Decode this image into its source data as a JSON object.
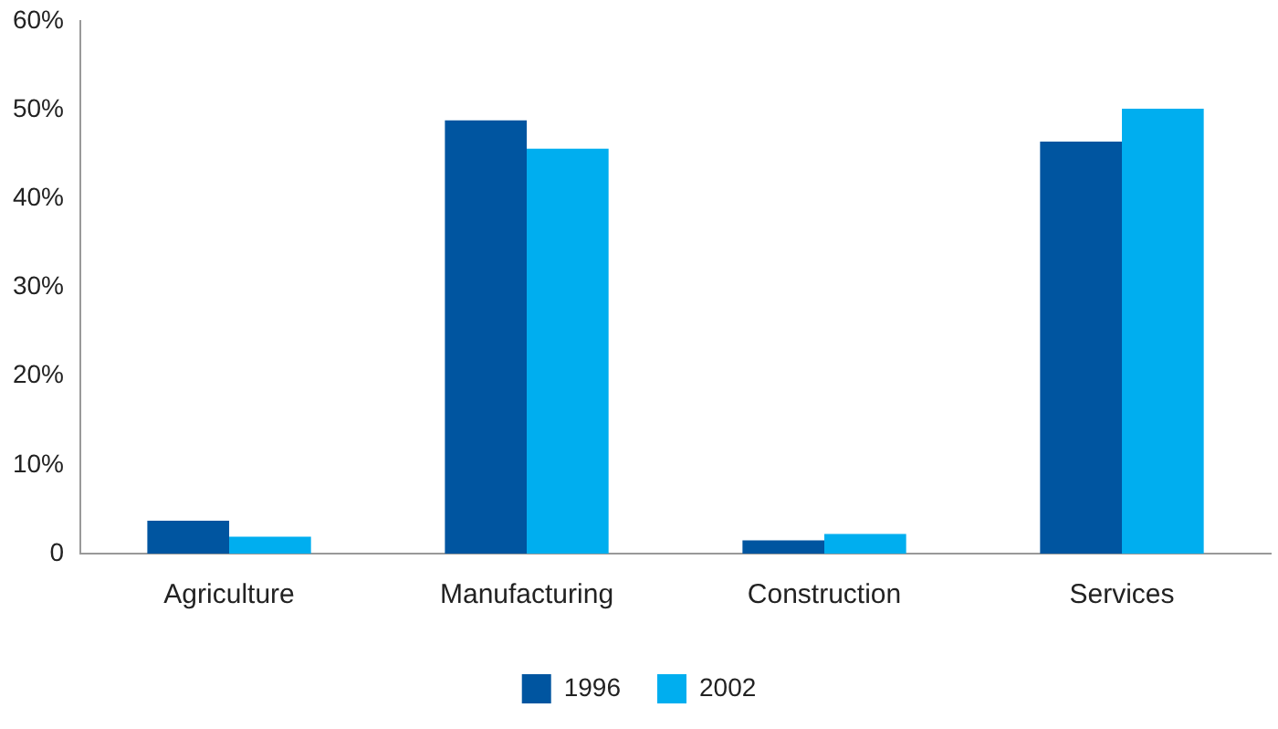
{
  "chart_data": {
    "type": "bar",
    "categories": [
      "Agriculture",
      "Manufacturing",
      "Construction",
      "Services"
    ],
    "series": [
      {
        "name": "1996",
        "color": "#0055a0",
        "values": [
          3.7,
          48.8,
          1.5,
          46.4
        ]
      },
      {
        "name": "2002",
        "color": "#00aeef",
        "values": [
          1.9,
          45.6,
          2.2,
          50.1
        ]
      }
    ],
    "ylim": [
      0,
      60
    ],
    "yticks": [
      {
        "value": 0,
        "label": "0"
      },
      {
        "value": 10,
        "label": "10%"
      },
      {
        "value": 20,
        "label": "20%"
      },
      {
        "value": 30,
        "label": "30%"
      },
      {
        "value": 40,
        "label": "40%"
      },
      {
        "value": 50,
        "label": "50%"
      },
      {
        "value": 60,
        "label": "60%"
      }
    ],
    "grid": false,
    "legend": "bottom"
  }
}
